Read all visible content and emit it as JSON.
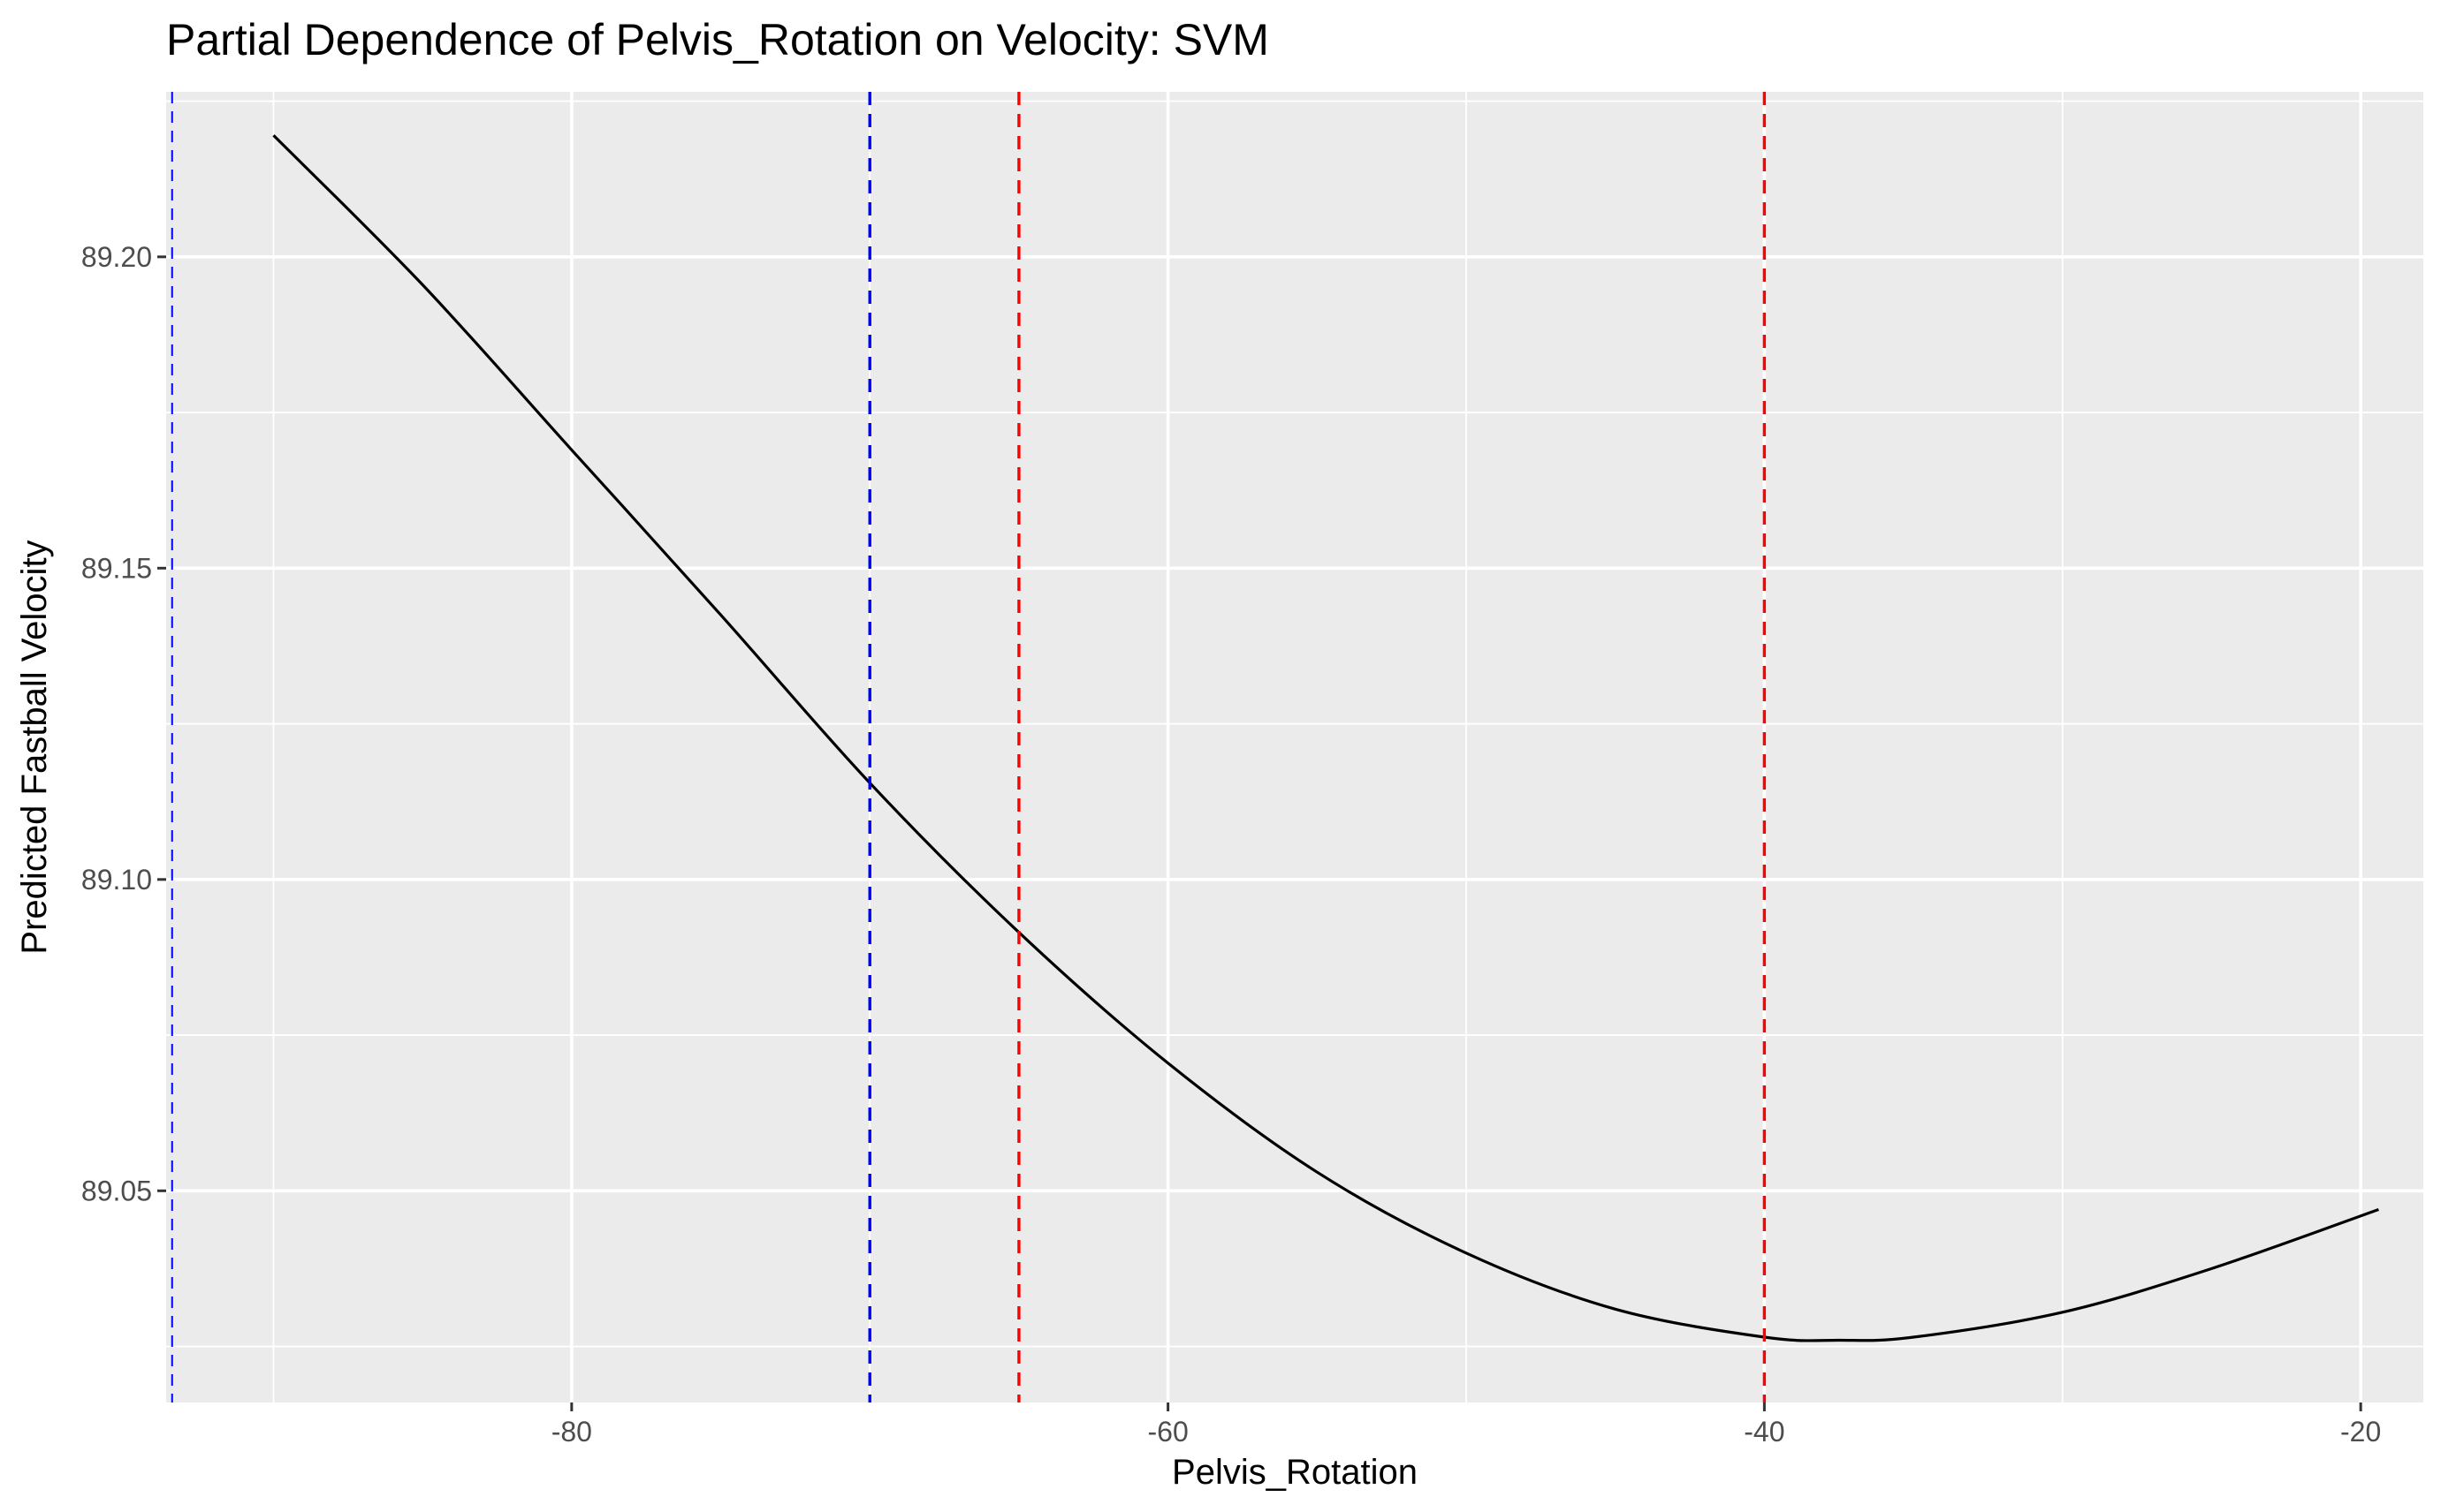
{
  "chart_data": {
    "type": "line",
    "title": "Partial Dependence of Pelvis_Rotation on Velocity: SVM",
    "xlabel": "Pelvis_Rotation",
    "ylabel": "Predicted Fastball Velocity",
    "xlim": [
      -93.6,
      -17.9
    ],
    "ylim": [
      89.016,
      89.2265
    ],
    "x_ticks": [
      -80,
      -60,
      -40,
      -20
    ],
    "x_tick_labels": [
      "-80",
      "-60",
      "-40",
      "-20"
    ],
    "x_minor_ticks": [
      -90,
      -70,
      -50,
      -30
    ],
    "y_ticks": [
      89.05,
      89.1,
      89.15,
      89.2
    ],
    "y_tick_labels": [
      "89.05",
      "89.10",
      "89.15",
      "89.20"
    ],
    "y_minor_ticks": [
      89.025,
      89.075,
      89.125,
      89.175,
      89.225
    ],
    "grid": true,
    "background": "#ebebeb",
    "series": [
      {
        "color": "#000000",
        "x": [
          -90,
          -85,
          -80,
          -75,
          -70,
          -65,
          -60,
          -55,
          -50,
          -45,
          -40,
          -37.5,
          -35,
          -30,
          -25,
          -19.4
        ],
        "y": [
          89.2195,
          89.1955,
          89.169,
          89.1425,
          89.1155,
          89.0915,
          89.0705,
          89.053,
          89.04,
          89.031,
          89.0265,
          89.026,
          89.0265,
          89.0305,
          89.0375,
          89.047
        ]
      }
    ],
    "reference_lines": [
      {
        "axis": "x",
        "value": -93.4,
        "color": "#0000ff",
        "style": "dashed",
        "weight": "thin"
      },
      {
        "axis": "x",
        "value": -70.0,
        "color": "#0000ff",
        "style": "dashed",
        "weight": "normal"
      },
      {
        "axis": "x",
        "value": -65.0,
        "color": "#ff0000",
        "style": "dashed",
        "weight": "normal"
      },
      {
        "axis": "x",
        "value": -40.0,
        "color": "#ff0000",
        "style": "dashed",
        "weight": "normal"
      }
    ]
  }
}
